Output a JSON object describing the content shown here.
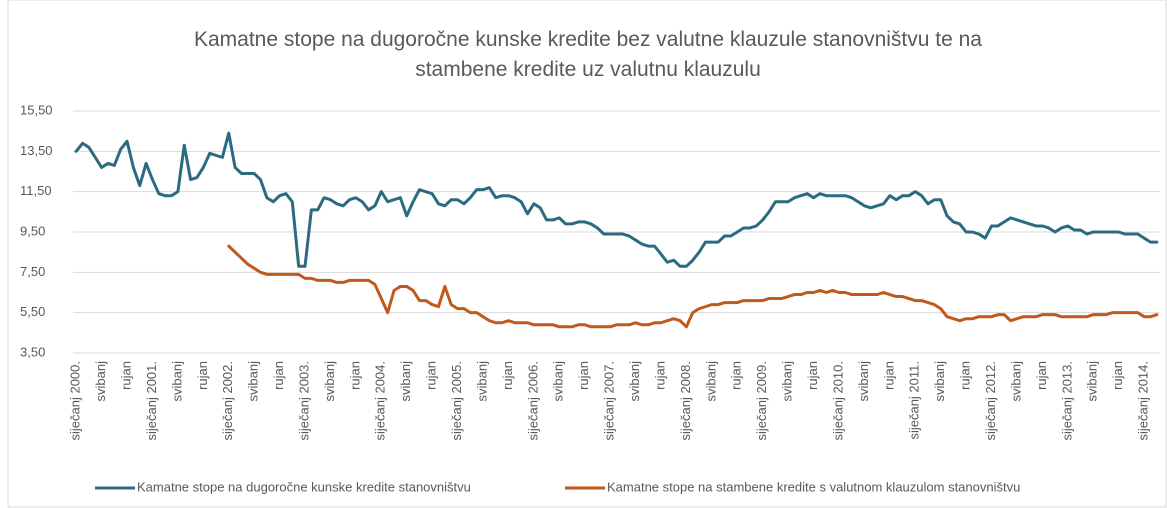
{
  "chart_data": {
    "type": "line",
    "title": [
      "Kamatne stope na dugoročne kunske kredite bez valutne klauzule stanovništvu te na",
      "stambene kredite uz valutnu klauzulu"
    ],
    "categories": [
      "siječanj 2000.",
      null,
      null,
      null,
      "svibanj",
      null,
      null,
      null,
      "rujan",
      null,
      null,
      null,
      "siječanj 2001.",
      null,
      null,
      null,
      "svibanj",
      null,
      null,
      null,
      "rujan",
      null,
      null,
      null,
      "siječanj 2002.",
      null,
      null,
      null,
      "svibanj",
      null,
      null,
      null,
      "rujan",
      null,
      null,
      null,
      "siječanj 2003.",
      null,
      null,
      null,
      "svibanj",
      null,
      null,
      null,
      "rujan",
      null,
      null,
      null,
      "siječanj 2004.",
      null,
      null,
      null,
      "svibanj",
      null,
      null,
      null,
      "rujan",
      null,
      null,
      null,
      "siječanj 2005.",
      null,
      null,
      null,
      "svibanj",
      null,
      null,
      null,
      "rujan",
      null,
      null,
      null,
      "siječanj 2006.",
      null,
      null,
      null,
      "svibanj",
      null,
      null,
      null,
      "rujan",
      null,
      null,
      null,
      "siječanj 2007.",
      null,
      null,
      null,
      "svibanj",
      null,
      null,
      null,
      "rujan",
      null,
      null,
      null,
      "siječanj 2008.",
      null,
      null,
      null,
      "svibanj",
      null,
      null,
      null,
      "rujan",
      null,
      null,
      null,
      "siječanj 2009.",
      null,
      null,
      null,
      "svibanj",
      null,
      null,
      null,
      "rujan",
      null,
      null,
      null,
      "siječanj 2010.",
      null,
      null,
      null,
      "svibanj",
      null,
      null,
      null,
      "rujan",
      null,
      null,
      null,
      "siječanj 2011.",
      null,
      null,
      null,
      "svibanj",
      null,
      null,
      null,
      "rujan",
      null,
      null,
      null,
      "siječanj 2012.",
      null,
      null,
      null,
      "svibanj",
      null,
      null,
      null,
      "rujan",
      null,
      null,
      null,
      "siječanj 2013.",
      null,
      null,
      null,
      "svibanj",
      null,
      null,
      null,
      "rujan",
      null,
      null,
      null,
      "siječanj 2014.",
      null,
      null
    ],
    "series": [
      {
        "name": "Kamatne stope na dugoročne kunske kredite stanovništvu",
        "color": "#2b6b80",
        "values": [
          13.5,
          13.9,
          13.7,
          13.2,
          12.7,
          12.9,
          12.8,
          13.6,
          14.0,
          12.7,
          11.8,
          12.9,
          12.1,
          11.4,
          11.3,
          11.3,
          11.5,
          13.8,
          12.1,
          12.2,
          12.7,
          13.4,
          13.3,
          13.2,
          14.4,
          12.7,
          12.4,
          12.4,
          12.4,
          12.1,
          11.2,
          11.0,
          11.3,
          11.4,
          11.0,
          7.8,
          7.8,
          10.6,
          10.6,
          11.2,
          11.1,
          10.9,
          10.8,
          11.1,
          11.2,
          11.0,
          10.6,
          10.8,
          11.5,
          11.0,
          11.1,
          11.2,
          10.3,
          11.0,
          11.6,
          11.5,
          11.4,
          10.9,
          10.8,
          11.1,
          11.1,
          10.9,
          11.2,
          11.6,
          11.6,
          11.7,
          11.2,
          11.3,
          11.3,
          11.2,
          11.0,
          10.4,
          10.9,
          10.7,
          10.1,
          10.1,
          10.2,
          9.9,
          9.9,
          10.0,
          10.0,
          9.9,
          9.7,
          9.4,
          9.4,
          9.4,
          9.4,
          9.3,
          9.1,
          8.9,
          8.8,
          8.8,
          8.4,
          8.0,
          8.1,
          7.8,
          7.8,
          8.1,
          8.5,
          9.0,
          9.0,
          9.0,
          9.3,
          9.3,
          9.5,
          9.7,
          9.7,
          9.8,
          10.1,
          10.5,
          11.0,
          11.0,
          11.0,
          11.2,
          11.3,
          11.4,
          11.2,
          11.4,
          11.3,
          11.3,
          11.3,
          11.3,
          11.2,
          11.0,
          10.8,
          10.7,
          10.8,
          10.9,
          11.3,
          11.1,
          11.3,
          11.3,
          11.5,
          11.3,
          10.9,
          11.1,
          11.1,
          10.3,
          10.0,
          9.9,
          9.5,
          9.5,
          9.4,
          9.2,
          9.8,
          9.8,
          10.0,
          10.2,
          10.1,
          10.0,
          9.9,
          9.8,
          9.8,
          9.7,
          9.5,
          9.7,
          9.8,
          9.6,
          9.6,
          9.4,
          9.5,
          9.5,
          9.5,
          9.5,
          9.5,
          9.4,
          9.4,
          9.4,
          9.2,
          9.0,
          9.0
        ]
      },
      {
        "name": "Kamatne stope na stambene kredite s valutnom klauzulom stanovništvu",
        "color": "#c0591a",
        "values": [
          null,
          null,
          null,
          null,
          null,
          null,
          null,
          null,
          null,
          null,
          null,
          null,
          null,
          null,
          null,
          null,
          null,
          null,
          null,
          null,
          null,
          null,
          null,
          null,
          8.8,
          8.5,
          8.2,
          7.9,
          7.7,
          7.5,
          7.4,
          7.4,
          7.4,
          7.4,
          7.4,
          7.4,
          7.2,
          7.2,
          7.1,
          7.1,
          7.1,
          7.0,
          7.0,
          7.1,
          7.1,
          7.1,
          7.1,
          6.9,
          6.2,
          5.5,
          6.6,
          6.8,
          6.8,
          6.6,
          6.1,
          6.1,
          5.9,
          5.8,
          6.8,
          5.9,
          5.7,
          5.7,
          5.5,
          5.5,
          5.3,
          5.1,
          5.0,
          5.0,
          5.1,
          5.0,
          5.0,
          5.0,
          4.9,
          4.9,
          4.9,
          4.9,
          4.8,
          4.8,
          4.8,
          4.9,
          4.9,
          4.8,
          4.8,
          4.8,
          4.8,
          4.9,
          4.9,
          4.9,
          5.0,
          4.9,
          4.9,
          5.0,
          5.0,
          5.1,
          5.2,
          5.1,
          4.8,
          5.5,
          5.7,
          5.8,
          5.9,
          5.9,
          6.0,
          6.0,
          6.0,
          6.1,
          6.1,
          6.1,
          6.1,
          6.2,
          6.2,
          6.2,
          6.3,
          6.4,
          6.4,
          6.5,
          6.5,
          6.6,
          6.5,
          6.6,
          6.5,
          6.5,
          6.4,
          6.4,
          6.4,
          6.4,
          6.4,
          6.5,
          6.4,
          6.3,
          6.3,
          6.2,
          6.1,
          6.1,
          6.0,
          5.9,
          5.7,
          5.3,
          5.2,
          5.1,
          5.2,
          5.2,
          5.3,
          5.3,
          5.3,
          5.4,
          5.4,
          5.1,
          5.2,
          5.3,
          5.3,
          5.3,
          5.4,
          5.4,
          5.4,
          5.3,
          5.3,
          5.3,
          5.3,
          5.3,
          5.4,
          5.4,
          5.4,
          5.5,
          5.5,
          5.5,
          5.5,
          5.5,
          5.3,
          5.3,
          5.4
        ]
      }
    ],
    "ylim": [
      3.5,
      15.5
    ],
    "yticks": [
      {
        "value": 3.5,
        "label": "3,50"
      },
      {
        "value": 5.5,
        "label": "5,50"
      },
      {
        "value": 7.5,
        "label": "7,50"
      },
      {
        "value": 9.5,
        "label": "9,50"
      },
      {
        "value": 11.5,
        "label": "11,50"
      },
      {
        "value": 13.5,
        "label": "13,50"
      },
      {
        "value": 15.5,
        "label": "15,50"
      }
    ],
    "grid": true,
    "legend": "bottom"
  }
}
